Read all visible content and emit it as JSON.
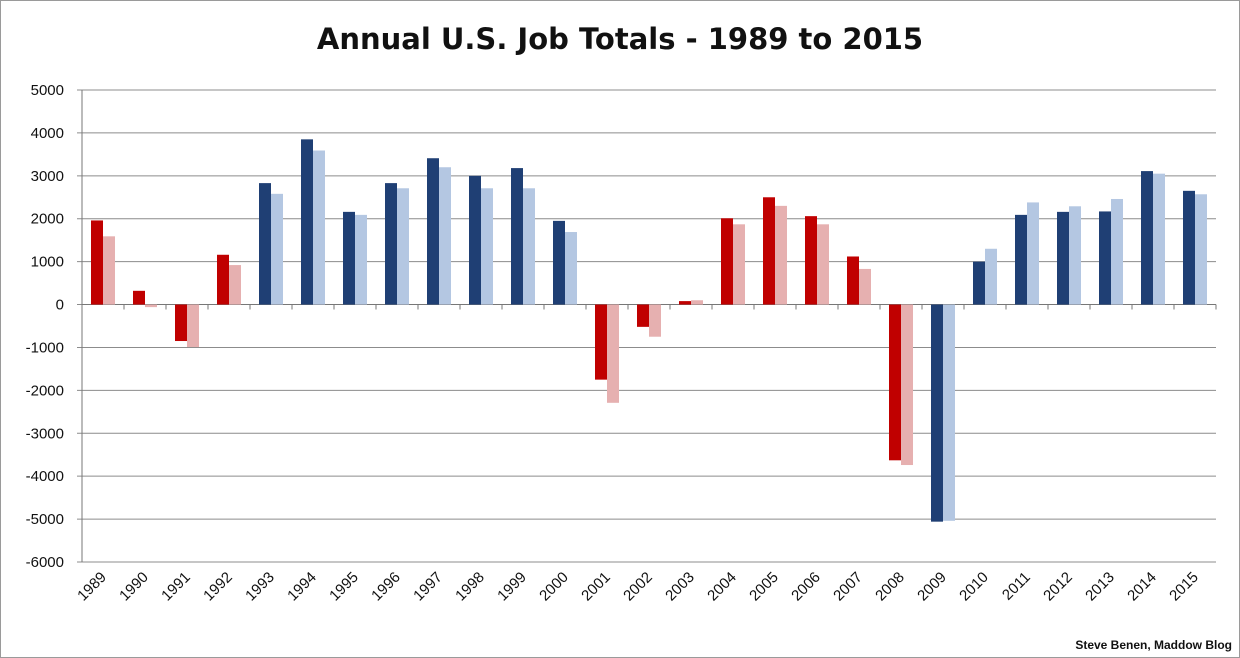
{
  "chart_data": {
    "type": "bar",
    "title": "Annual U.S. Job Totals - 1989 to 2015",
    "xlabel": "",
    "ylabel": "",
    "ylim": [
      -6000,
      5000
    ],
    "yticks": [
      5000,
      4000,
      3000,
      2000,
      1000,
      0,
      -1000,
      -2000,
      -3000,
      -4000,
      -5000,
      -6000
    ],
    "grid": true,
    "legend": "none",
    "categories": [
      "1989",
      "1990",
      "1991",
      "1992",
      "1993",
      "1994",
      "1995",
      "1996",
      "1997",
      "1998",
      "1999",
      "2000",
      "2001",
      "2002",
      "2003",
      "2004",
      "2005",
      "2006",
      "2007",
      "2008",
      "2009",
      "2010",
      "2011",
      "2012",
      "2013",
      "2014",
      "2015"
    ],
    "series": [
      {
        "values": [
          1960,
          320,
          -850,
          1160,
          2830,
          3850,
          2160,
          2830,
          3410,
          3000,
          3180,
          1950,
          -1750,
          -520,
          80,
          2010,
          2500,
          2060,
          1120,
          -3630,
          -5060,
          1000,
          2090,
          2160,
          2170,
          3110,
          2650
        ]
      },
      {
        "values": [
          1590,
          -60,
          -990,
          920,
          2580,
          3590,
          2090,
          2710,
          3200,
          2710,
          2710,
          1690,
          -2290,
          -750,
          100,
          1870,
          2300,
          1870,
          830,
          -3740,
          -5040,
          1300,
          2380,
          2290,
          2460,
          3050,
          2570
        ]
      }
    ],
    "colors": {
      "dark_red": "#c00000",
      "light_red": "#e6b0b0",
      "dark_blue": "#1f3f74",
      "light_blue": "#b4c7e2",
      "grid": "#8c8c8c"
    },
    "bar_colors": [
      "red",
      "red",
      "red",
      "red",
      "blue",
      "blue",
      "blue",
      "blue",
      "blue",
      "blue",
      "blue",
      "blue",
      "red",
      "red",
      "red",
      "red",
      "red",
      "red",
      "red",
      "red",
      "blue",
      "blue",
      "blue",
      "blue",
      "blue",
      "blue",
      "blue"
    ],
    "credit": "Steve Benen, Maddow Blog"
  }
}
